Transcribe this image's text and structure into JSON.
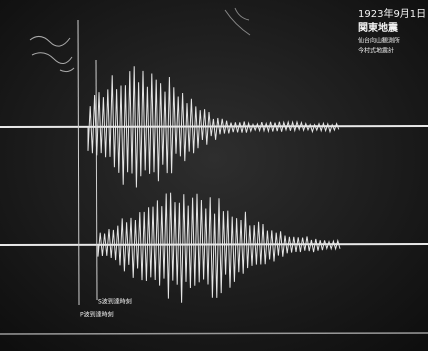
{
  "caption": {
    "date": "1923年9月1日",
    "title": "関東地震",
    "station": "仙台向山観測所",
    "instrument": "今村式地震計"
  },
  "labels": {
    "s_wave": "S波到達時刻",
    "p_wave": "P波到達時刻"
  }
}
